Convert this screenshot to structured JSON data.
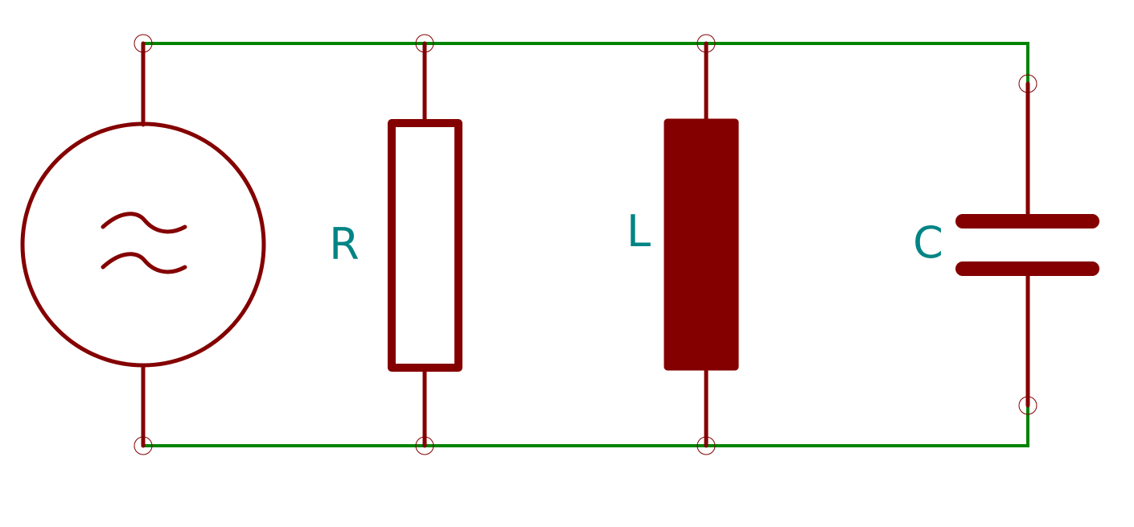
{
  "labels": {
    "resistor": "R",
    "inductor": "L",
    "capacitor": "C"
  },
  "colors": {
    "wire": "#008400",
    "component": "#840000",
    "label": "#008484",
    "pin": "#840000"
  }
}
